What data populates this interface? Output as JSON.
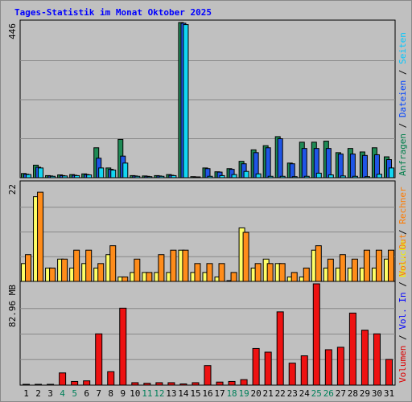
{
  "chart_data": [
    {
      "type": "bar",
      "title": "Tages-Statistik im Monat Oktober 2025",
      "ymax_label": "446",
      "ylim": [
        0,
        446
      ],
      "grid": true,
      "legend_placement": "right",
      "legend": [
        {
          "label": "Anfragen",
          "color": "#007e4a"
        },
        {
          "label": "Dateien",
          "color": "#0042ff"
        },
        {
          "label": "Seiten",
          "color": "#00c8ff"
        }
      ],
      "categories": [
        "1",
        "2",
        "3",
        "4",
        "5",
        "6",
        "7",
        "8",
        "9",
        "10",
        "11",
        "12",
        "13",
        "14",
        "15",
        "16",
        "17",
        "18",
        "19",
        "20",
        "21",
        "22",
        "23",
        "24",
        "25",
        "26",
        "27",
        "28",
        "29",
        "30",
        "31"
      ],
      "weekend_days": [
        "4",
        "5",
        "11",
        "12",
        "18",
        "19",
        "25",
        "26"
      ],
      "series": [
        {
          "name": "Anfragen",
          "color": "#1e8a55",
          "values": [
            12,
            36,
            6,
            8,
            9,
            11,
            86,
            28,
            110,
            6,
            5,
            6,
            9,
            446,
            3,
            28,
            17,
            26,
            47,
            80,
            92,
            118,
            42,
            102,
            102,
            105,
            72,
            84,
            74,
            86,
            60
          ]
        },
        {
          "name": "Dateien",
          "color": "#1f55e6",
          "values": [
            10,
            30,
            5,
            6,
            7,
            9,
            56,
            24,
            62,
            5,
            4,
            5,
            7,
            444,
            2,
            26,
            16,
            24,
            40,
            72,
            86,
            112,
            40,
            84,
            84,
            84,
            68,
            68,
            64,
            66,
            52
          ]
        },
        {
          "name": "Seiten",
          "color": "#12d6f2",
          "values": [
            9,
            28,
            4,
            5,
            6,
            8,
            28,
            22,
            42,
            4,
            3,
            4,
            6,
            440,
            2,
            4,
            6,
            9,
            18,
            11,
            4,
            4,
            3,
            4,
            13,
            8,
            5,
            4,
            3,
            10,
            28
          ]
        }
      ]
    },
    {
      "type": "bar",
      "ymax_label": "22",
      "ylim": [
        0,
        22
      ],
      "grid": true,
      "legend_placement": "right",
      "legend": [
        {
          "label": "Besuche",
          "color": "#f0f000"
        },
        {
          "label": "Rechner",
          "color": "#ff7b00"
        }
      ],
      "categories": [
        "1",
        "2",
        "3",
        "4",
        "5",
        "6",
        "7",
        "8",
        "9",
        "10",
        "11",
        "12",
        "13",
        "14",
        "15",
        "16",
        "17",
        "18",
        "19",
        "20",
        "21",
        "22",
        "23",
        "24",
        "25",
        "26",
        "27",
        "28",
        "29",
        "30",
        "31"
      ],
      "series": [
        {
          "name": "Besuche",
          "color": "#ffff66",
          "values": [
            4,
            19,
            3,
            5,
            3,
            4,
            3,
            6,
            1,
            2,
            2,
            2,
            2,
            7,
            2,
            2,
            1,
            0,
            12,
            3,
            5,
            4,
            1,
            1,
            7,
            3,
            3,
            3,
            3,
            3,
            5
          ]
        },
        {
          "name": "Rechner",
          "color": "#ff8c1a",
          "values": [
            6,
            20,
            3,
            5,
            7,
            7,
            4,
            8,
            1,
            5,
            2,
            6,
            7,
            7,
            4,
            4,
            4,
            2,
            11,
            4,
            4,
            4,
            2,
            3,
            8,
            5,
            6,
            5,
            7,
            7,
            7
          ]
        }
      ]
    },
    {
      "type": "bar",
      "ymax_label": "82.96 MB",
      "ylim": [
        0,
        82.96
      ],
      "grid": true,
      "legend_placement": "right",
      "legend": [
        {
          "label": "Volumen",
          "color": "#dd0000"
        },
        {
          "label": "Vol. In",
          "color": "#0000ff"
        },
        {
          "label": "Vol. Out",
          "color": "#ff7b00"
        }
      ],
      "legend_separator": "/",
      "series": [
        {
          "name": "Volumen",
          "color": "#ee1111",
          "values": [
            0.5,
            0.5,
            0.5,
            10,
            3,
            3.5,
            42,
            11,
            63,
            2,
            1.5,
            2,
            2,
            1,
            2,
            16,
            2.5,
            3,
            4.5,
            30,
            27,
            60,
            18,
            24,
            82.96,
            29,
            31,
            59,
            45,
            42,
            21
          ]
        }
      ]
    }
  ],
  "footer": {
    "weekday_color": "#000000",
    "weekend_color": "#00805a"
  }
}
